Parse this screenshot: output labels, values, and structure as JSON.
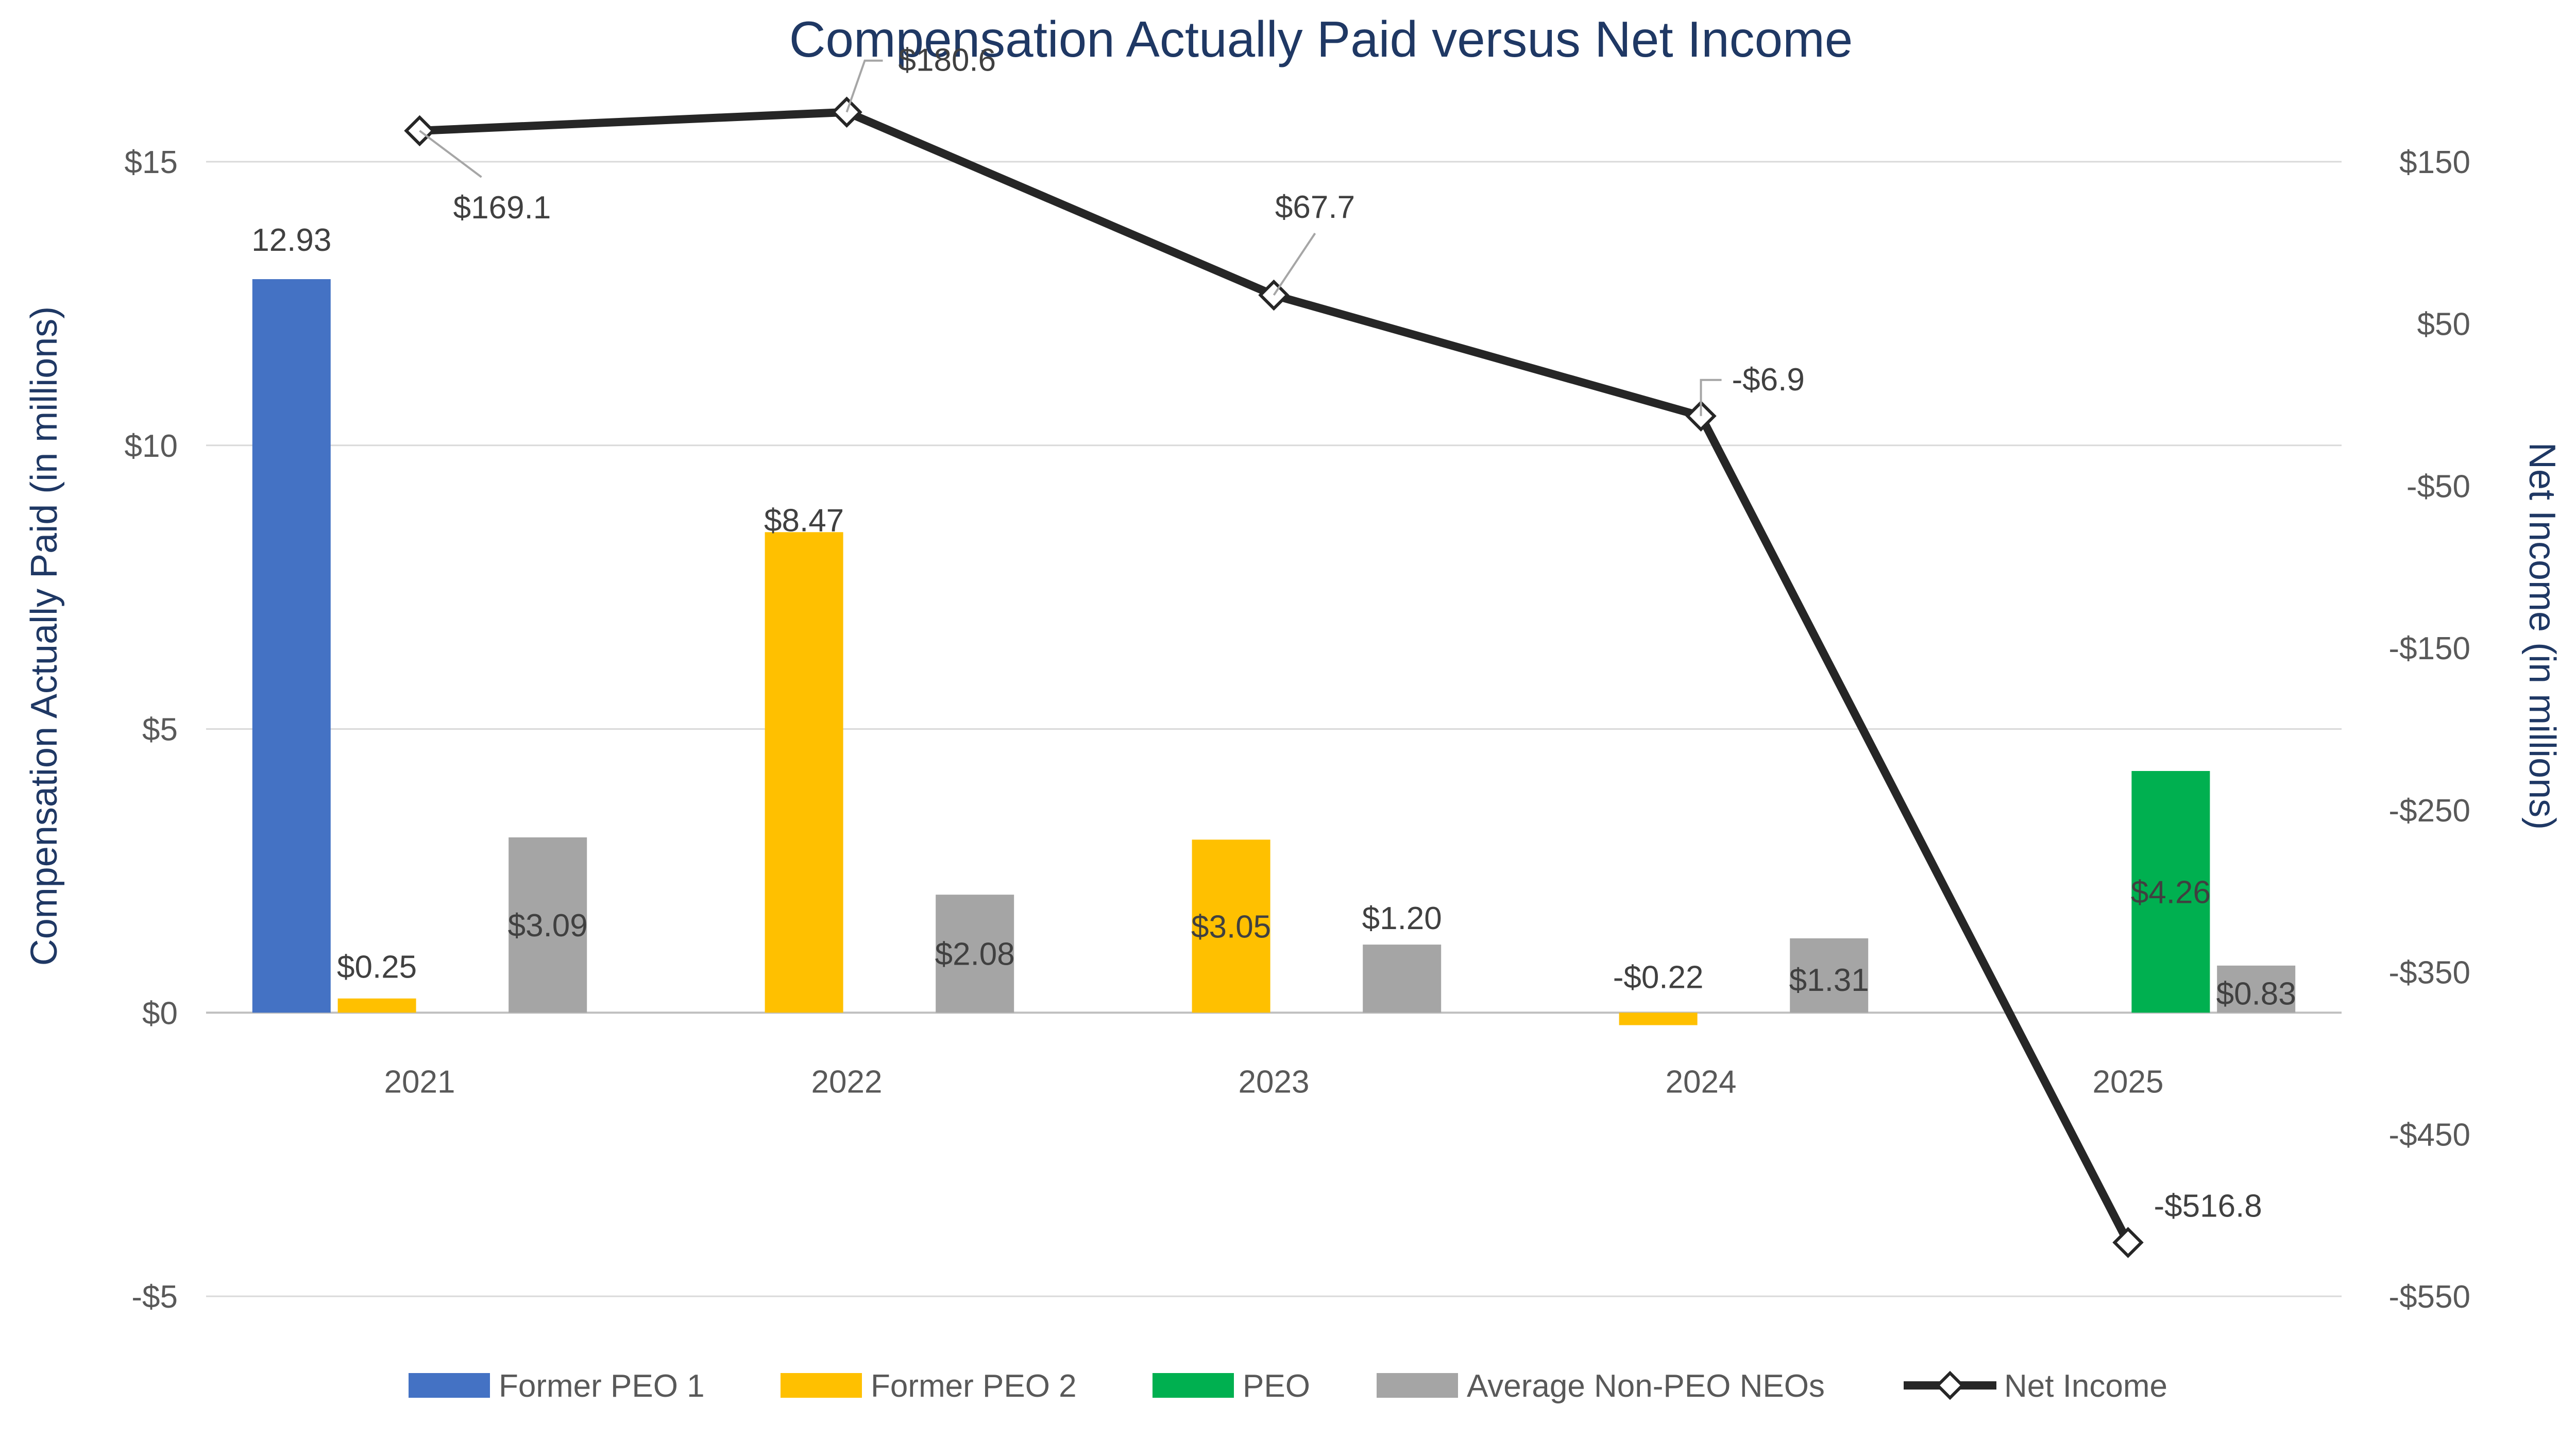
{
  "chart_data": {
    "type": "bar",
    "title": "Compensation Actually Paid versus Net Income",
    "xlabel": "",
    "ylabel": "Compensation Actually Paid (in millions)",
    "y2label": "Net Income (in millions)",
    "categories": [
      "2021",
      "2022",
      "2023",
      "2024",
      "2025"
    ],
    "ylim": [
      -5,
      15
    ],
    "yticks": [
      15,
      10,
      5,
      0,
      -5
    ],
    "ytick_labels": [
      "$15",
      "$10",
      "$5",
      "$0",
      "-$5"
    ],
    "y2lim": [
      -550,
      150
    ],
    "y2ticks": [
      150,
      50,
      -50,
      -150,
      -250,
      -350,
      -450,
      -550
    ],
    "y2tick_labels": [
      "$150",
      "$50",
      "-$50",
      "-$150",
      "-$250",
      "-$350",
      "-$450",
      "-$550"
    ],
    "grid": true,
    "legend_position": "bottom",
    "series": [
      {
        "name": "Former PEO 1",
        "color": "#4472c4",
        "values": [
          12.93,
          null,
          null,
          null,
          null
        ],
        "labels": [
          "12.93",
          "",
          "",
          "",
          ""
        ]
      },
      {
        "name": "Former PEO 2",
        "color": "#ffc000",
        "values": [
          0.25,
          8.47,
          3.05,
          -0.22,
          null
        ],
        "labels": [
          "$0.25",
          "$8.47",
          "$3.05",
          "-$0.22",
          ""
        ]
      },
      {
        "name": "PEO",
        "color": "#00b050",
        "values": [
          null,
          null,
          null,
          null,
          4.26
        ],
        "labels": [
          "",
          "",
          "",
          "",
          "$4.26"
        ]
      },
      {
        "name": "Average Non-PEO NEOs",
        "color": "#a5a5a5",
        "values": [
          3.09,
          2.08,
          1.2,
          1.31,
          0.83
        ],
        "labels": [
          "$3.09",
          "$2.08",
          "$1.20",
          "$1.31",
          "$0.83"
        ]
      }
    ],
    "line_series": {
      "name": "Net Income",
      "type": "line",
      "axis": "secondary",
      "color": "#262626",
      "marker": "diamond",
      "values": [
        169.1,
        180.6,
        67.7,
        -6.9,
        -516.8
      ],
      "labels": [
        "$169.1",
        "$180.6",
        "$67.7",
        "-$6.9",
        "-$516.8"
      ]
    }
  }
}
